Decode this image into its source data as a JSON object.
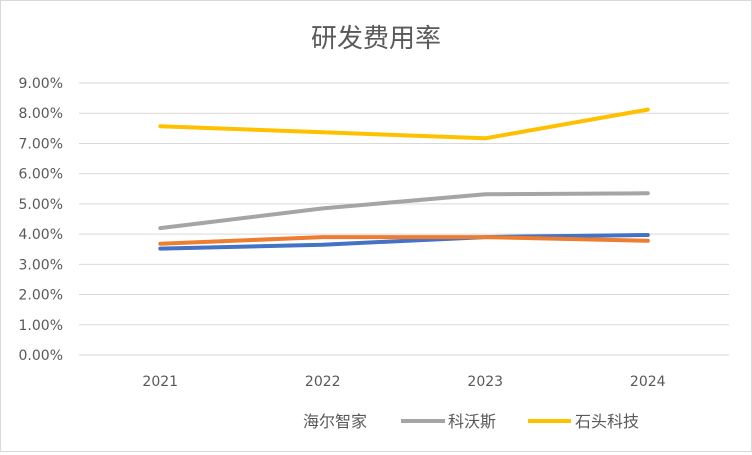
{
  "chart_data": {
    "type": "line",
    "title": "研发费用率",
    "xlabel": "",
    "ylabel": "",
    "categories": [
      "2021",
      "2022",
      "2023",
      "2024"
    ],
    "ylim": [
      0,
      9
    ],
    "yticks": [
      "0.00%",
      "1.00%",
      "2.00%",
      "3.00%",
      "4.00%",
      "5.00%",
      "6.00%",
      "7.00%",
      "8.00%",
      "9.00%"
    ],
    "grid": true,
    "legend_position": "bottom",
    "series": [
      {
        "key": "blue",
        "color": "#4472c4",
        "values": [
          3.52,
          3.65,
          3.9,
          3.97
        ]
      },
      {
        "key": "haier",
        "name": "海尔智家",
        "color": "#ed7d31",
        "values": [
          3.68,
          3.9,
          3.9,
          3.78
        ]
      },
      {
        "key": "ecovacs",
        "name": "科沃斯",
        "color": "#a5a5a5",
        "values": [
          4.2,
          4.85,
          5.32,
          5.35
        ]
      },
      {
        "key": "roborock",
        "name": "石头科技",
        "color": "#ffc000",
        "values": [
          7.57,
          7.37,
          7.17,
          8.12
        ]
      }
    ]
  }
}
